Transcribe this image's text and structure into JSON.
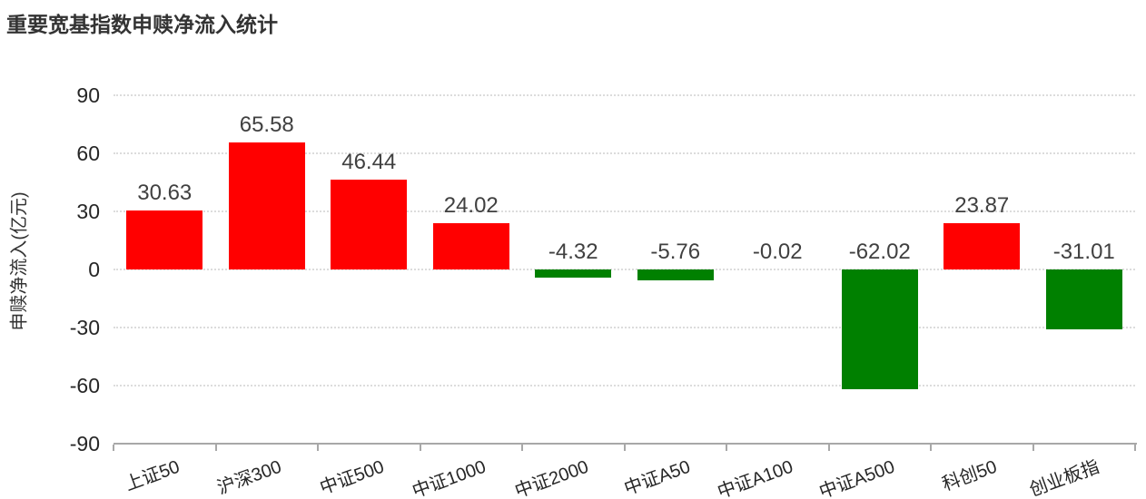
{
  "chart_data": {
    "type": "bar",
    "title": "重要宽基指数申赎净流入统计",
    "xlabel": "",
    "ylabel": "申赎净流入(亿元)",
    "categories": [
      "上证50",
      "沪深300",
      "中证500",
      "中证1000",
      "中证2000",
      "中证A50",
      "中证A100",
      "中证A500",
      "科创50",
      "创业板指"
    ],
    "values": [
      30.63,
      65.58,
      46.44,
      24.02,
      -4.32,
      -5.76,
      -0.02,
      -62.02,
      23.87,
      -31.01
    ],
    "ylim": [
      -90,
      90
    ],
    "yticks": [
      90,
      60,
      30,
      0,
      -30,
      -60,
      -90
    ],
    "grid": "horizontal dotted, no vertical gridlines, legend none",
    "x_tick_label_rotation_deg": -20,
    "colors": {
      "positive_bar": "#ff0000",
      "negative_bar": "#008000",
      "gridline": "#dcdcdc",
      "axis_line": "#a8a8a8",
      "value_label": "#404040",
      "tick_label": "#262626",
      "title": "#333333"
    }
  }
}
